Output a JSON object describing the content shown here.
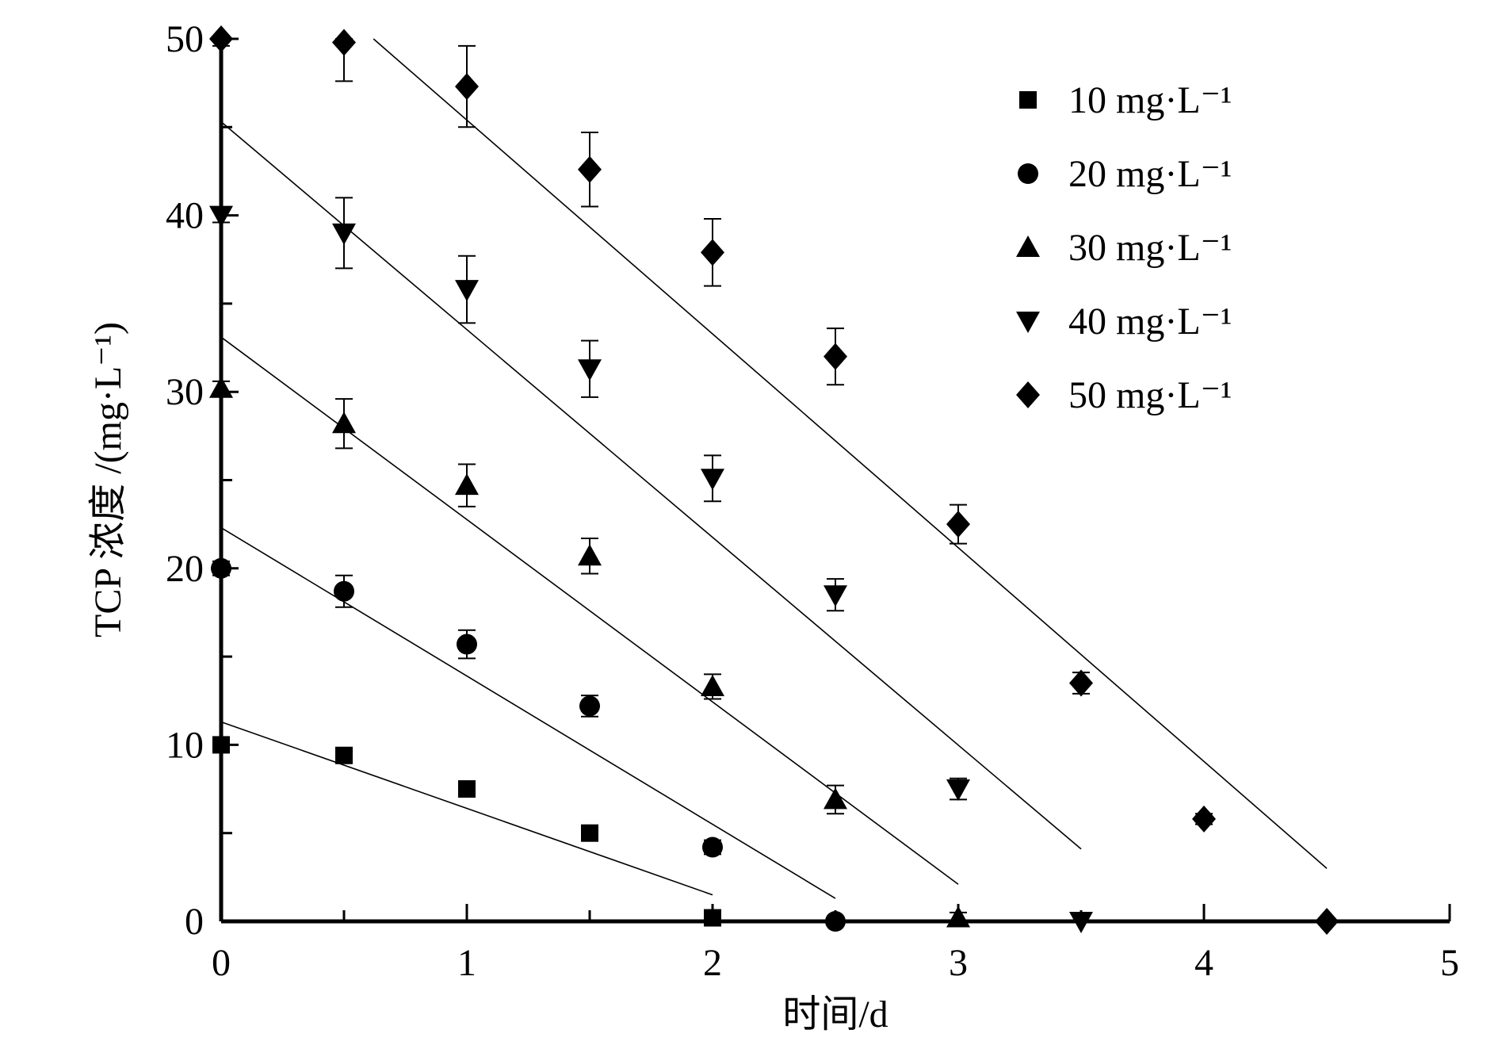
{
  "chart_data": {
    "type": "scatter",
    "title": "",
    "xlabel": "时间/d",
    "ylabel": "TCP 浓度 /(mg·L⁻¹)",
    "xlim": [
      0,
      5
    ],
    "ylim": [
      0,
      50
    ],
    "xticks": [
      "0",
      "1",
      "2",
      "3",
      "4",
      "5"
    ],
    "yticks": [
      "0",
      "10",
      "20",
      "30",
      "40",
      "50"
    ],
    "grid": false,
    "legend_position": "top-right",
    "series": [
      {
        "name": "10 mg·L⁻¹",
        "marker": "square",
        "x": [
          0,
          0.5,
          1,
          1.5,
          2
        ],
        "y": [
          10,
          9.4,
          7.5,
          5.0,
          0.2
        ],
        "err": [
          0.3,
          0.3,
          0.3,
          0.3,
          0.2
        ],
        "fit": [
          [
            0,
            11.3
          ],
          [
            2,
            1.5
          ]
        ]
      },
      {
        "name": "20 mg·L⁻¹",
        "marker": "circle",
        "x": [
          0,
          0.5,
          1,
          1.5,
          2,
          2.5
        ],
        "y": [
          20,
          18.7,
          15.7,
          12.2,
          4.2,
          0
        ],
        "err": [
          0.4,
          0.9,
          0.8,
          0.6,
          0.4,
          0.1
        ],
        "fit": [
          [
            0,
            22.3
          ],
          [
            2.5,
            1.3
          ]
        ]
      },
      {
        "name": "30 mg·L⁻¹",
        "marker": "triangle-up",
        "x": [
          0,
          0.5,
          1,
          1.5,
          2,
          2.5,
          3
        ],
        "y": [
          30.2,
          28.2,
          24.7,
          20.7,
          13.3,
          6.9,
          0.2
        ],
        "err": [
          0.4,
          1.4,
          1.2,
          1.0,
          0.7,
          0.8,
          0.3
        ],
        "fit": [
          [
            0,
            33.1
          ],
          [
            3,
            2.1
          ]
        ]
      },
      {
        "name": "40 mg·L⁻¹",
        "marker": "triangle-down",
        "x": [
          0,
          0.5,
          1,
          1.5,
          2,
          2.5,
          3,
          3.5
        ],
        "y": [
          40,
          39,
          35.8,
          31.3,
          25.1,
          18.5,
          7.5,
          0
        ],
        "err": [
          0.4,
          2.0,
          1.9,
          1.6,
          1.3,
          0.9,
          0.6,
          0.2
        ],
        "fit": [
          [
            0,
            45.3
          ],
          [
            3.5,
            4.1
          ]
        ]
      },
      {
        "name": "50 mg·L⁻¹",
        "marker": "diamond",
        "x": [
          0,
          0.5,
          1,
          1.5,
          2,
          2.5,
          3,
          3.5,
          4,
          4.5
        ],
        "y": [
          50,
          49.8,
          47.3,
          42.6,
          37.9,
          32,
          22.5,
          13.5,
          5.8,
          0
        ],
        "err": [
          0.4,
          2.2,
          2.3,
          2.1,
          1.9,
          1.6,
          1.1,
          0.6,
          0.3,
          0.2
        ],
        "fit": [
          [
            0.62,
            50
          ],
          [
            4.5,
            3.0
          ]
        ]
      }
    ]
  }
}
